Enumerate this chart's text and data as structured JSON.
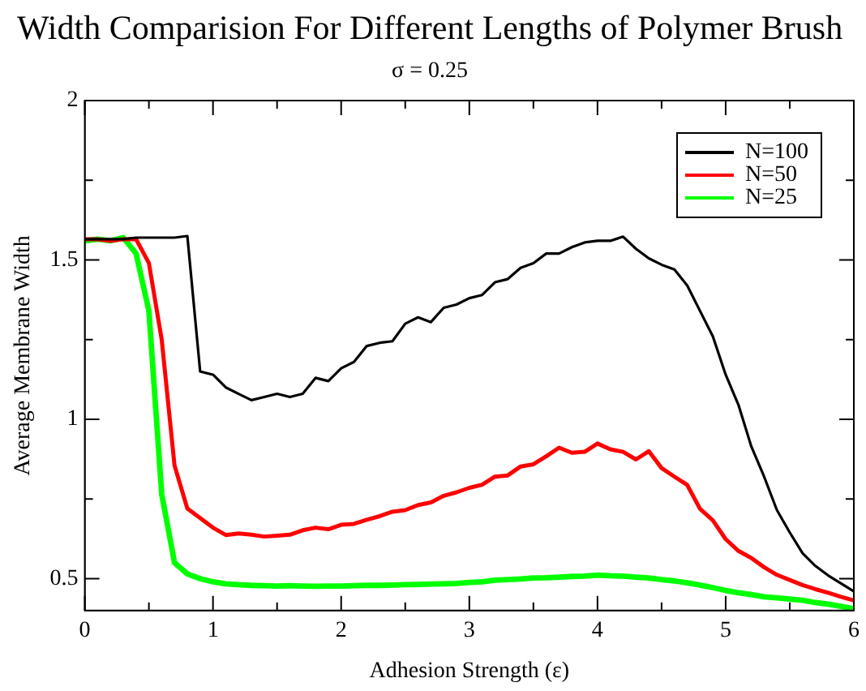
{
  "chart_data": {
    "type": "line",
    "title": "Width Comparision For Different Lengths of Polymer Brush",
    "subtitle": "σ = 0.25",
    "xlabel": "Adhesion Strength (ε)",
    "ylabel": "Average Membrane Width",
    "xlim": [
      0,
      6
    ],
    "ylim": [
      0.4,
      2
    ],
    "xticks": [
      0,
      {
        "value": 0.5,
        "label": null
      },
      1,
      {
        "value": 1.5,
        "label": null
      },
      2,
      {
        "value": 2.5,
        "label": null
      },
      3,
      {
        "value": 3.5,
        "label": null
      },
      4,
      {
        "value": 4.5,
        "label": null
      },
      5,
      {
        "value": 5.5,
        "label": null
      },
      6
    ],
    "yticks": [
      0.5,
      {
        "value": 0.75,
        "label": null
      },
      1,
      {
        "value": 1.25,
        "label": null
      },
      1.5,
      {
        "value": 1.75,
        "label": null
      },
      2
    ],
    "grid": false,
    "legend": "top right",
    "marker": "none",
    "line_style": "solid",
    "x": [
      0,
      0.1,
      0.2,
      0.3,
      0.4,
      0.5,
      0.6,
      0.7,
      0.8,
      0.9,
      1.0,
      1.1,
      1.2,
      1.3,
      1.4,
      1.5,
      1.6,
      1.7,
      1.8,
      1.9,
      2.0,
      2.1,
      2.2,
      2.3,
      2.4,
      2.5,
      2.6,
      2.7,
      2.8,
      2.9,
      3.0,
      3.1,
      3.2,
      3.3,
      3.4,
      3.5,
      3.6,
      3.7,
      3.8,
      3.9,
      4.0,
      4.1,
      4.2,
      4.3,
      4.4,
      4.5,
      4.6,
      4.7,
      4.8,
      4.9,
      5.0,
      5.1,
      5.2,
      5.3,
      5.4,
      5.5,
      5.6,
      5.7,
      5.8,
      5.9,
      6.0
    ],
    "series": [
      {
        "name": "N=100",
        "color": "#000000",
        "values": [
          1.565,
          1.565,
          1.565,
          1.565,
          1.57,
          1.57,
          1.57,
          1.57,
          1.575,
          1.15,
          1.14,
          1.1,
          1.08,
          1.06,
          1.07,
          1.08,
          1.07,
          1.08,
          1.13,
          1.12,
          1.16,
          1.18,
          1.23,
          1.24,
          1.245,
          1.3,
          1.32,
          1.305,
          1.35,
          1.36,
          1.38,
          1.39,
          1.43,
          1.44,
          1.475,
          1.49,
          1.52,
          1.52,
          1.54,
          1.555,
          1.56,
          1.56,
          1.573,
          1.535,
          1.505,
          1.485,
          1.47,
          1.42,
          1.34,
          1.26,
          1.14,
          1.045,
          0.915,
          0.82,
          0.715,
          0.645,
          0.58,
          0.54,
          0.51,
          0.485,
          0.46
        ]
      },
      {
        "name": "N=50",
        "color": "#ff0000",
        "values": [
          1.565,
          1.565,
          1.56,
          1.565,
          1.565,
          1.49,
          1.25,
          0.855,
          0.72,
          0.69,
          0.66,
          0.637,
          0.642,
          0.638,
          0.632,
          0.635,
          0.638,
          0.652,
          0.66,
          0.655,
          0.669,
          0.672,
          0.685,
          0.696,
          0.71,
          0.715,
          0.731,
          0.739,
          0.76,
          0.771,
          0.785,
          0.795,
          0.82,
          0.824,
          0.852,
          0.859,
          0.884,
          0.911,
          0.895,
          0.898,
          0.924,
          0.906,
          0.898,
          0.874,
          0.9,
          0.847,
          0.82,
          0.794,
          0.719,
          0.683,
          0.624,
          0.587,
          0.565,
          0.536,
          0.512,
          0.496,
          0.48,
          0.467,
          0.456,
          0.443,
          0.432
        ]
      },
      {
        "name": "N=25",
        "color": "#00ff00",
        "values": [
          1.56,
          1.565,
          1.56,
          1.57,
          1.52,
          1.34,
          0.765,
          0.55,
          0.515,
          0.5,
          0.49,
          0.484,
          0.481,
          0.479,
          0.478,
          0.477,
          0.478,
          0.477,
          0.476,
          0.477,
          0.477,
          0.478,
          0.479,
          0.479,
          0.48,
          0.481,
          0.482,
          0.483,
          0.484,
          0.485,
          0.488,
          0.49,
          0.495,
          0.497,
          0.499,
          0.502,
          0.503,
          0.505,
          0.507,
          0.508,
          0.511,
          0.509,
          0.508,
          0.505,
          0.502,
          0.497,
          0.493,
          0.487,
          0.48,
          0.472,
          0.463,
          0.456,
          0.45,
          0.443,
          0.44,
          0.436,
          0.432,
          0.425,
          0.42,
          0.413,
          0.405
        ]
      }
    ]
  }
}
